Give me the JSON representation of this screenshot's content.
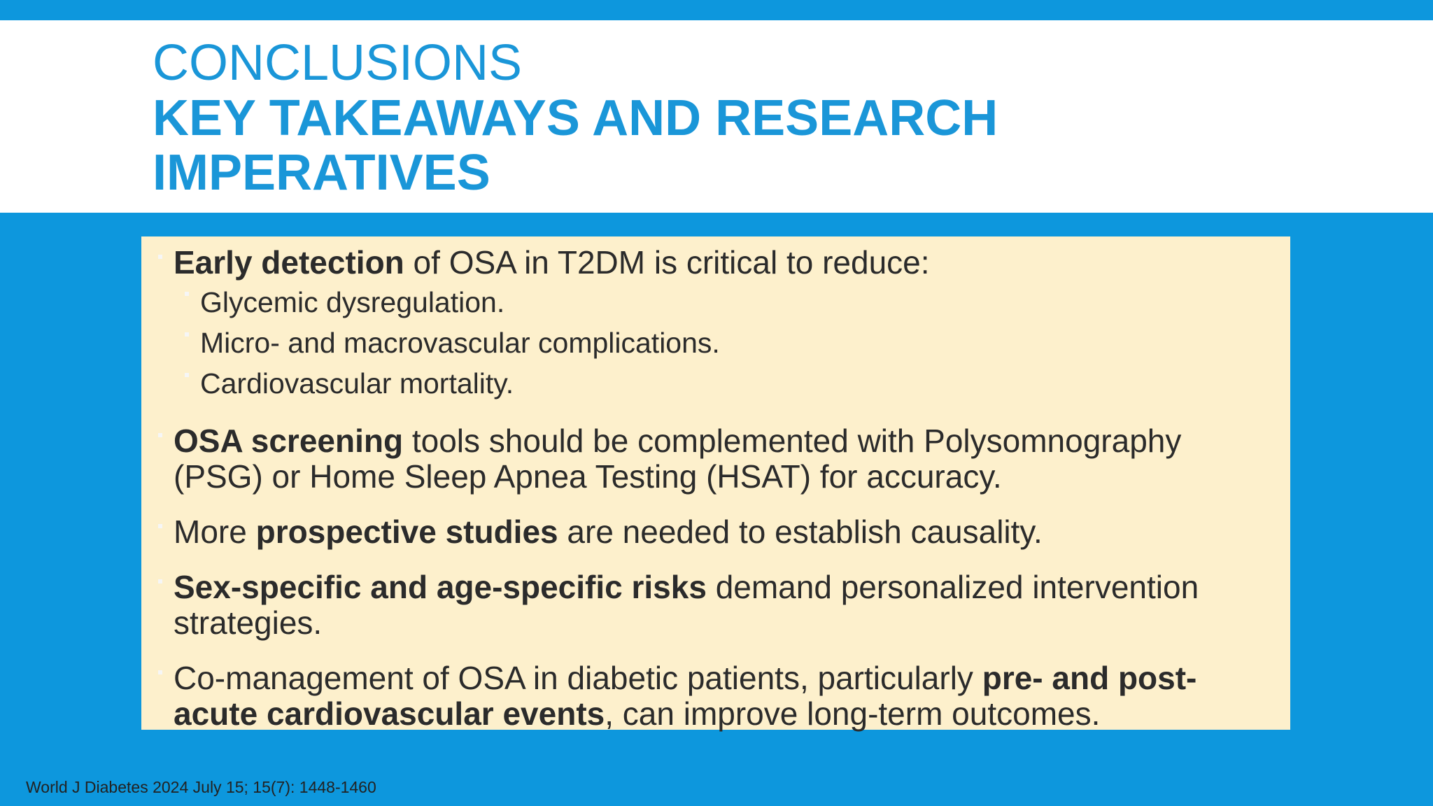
{
  "header": {
    "title": "CONCLUSIONS",
    "subtitle": "KEY TAKEAWAYS AND RESEARCH IMPERATIVES"
  },
  "bullets": [
    {
      "segments": [
        {
          "text": "Early detection",
          "bold": true
        },
        {
          "text": " of OSA in T2DM is critical to reduce:"
        }
      ],
      "sub": [
        "Glycemic dysregulation.",
        "Micro- and macrovascular complications.",
        "Cardiovascular mortality."
      ]
    },
    {
      "segments": [
        {
          "text": "OSA screening",
          "bold": true
        },
        {
          "text": " tools should be complemented with Polysomnography (PSG) or Home Sleep Apnea Testing (HSAT) for accuracy."
        }
      ]
    },
    {
      "segments": [
        {
          "text": "More "
        },
        {
          "text": "prospective studies",
          "bold": true
        },
        {
          "text": " are needed to establish causality."
        }
      ]
    },
    {
      "segments": [
        {
          "text": "Sex-specific and age-specific risks",
          "bold": true
        },
        {
          "text": " demand personalized intervention strategies."
        }
      ]
    },
    {
      "segments": [
        {
          "text": "Co-management of OSA in diabetic patients, particularly "
        },
        {
          "text": "pre- and post-acute cardiovascular events",
          "bold": true
        },
        {
          "text": ", can improve long-term outcomes."
        }
      ]
    }
  ],
  "footer": "World J Diabetes 2024 July 15; 15(7): 1448-1460"
}
